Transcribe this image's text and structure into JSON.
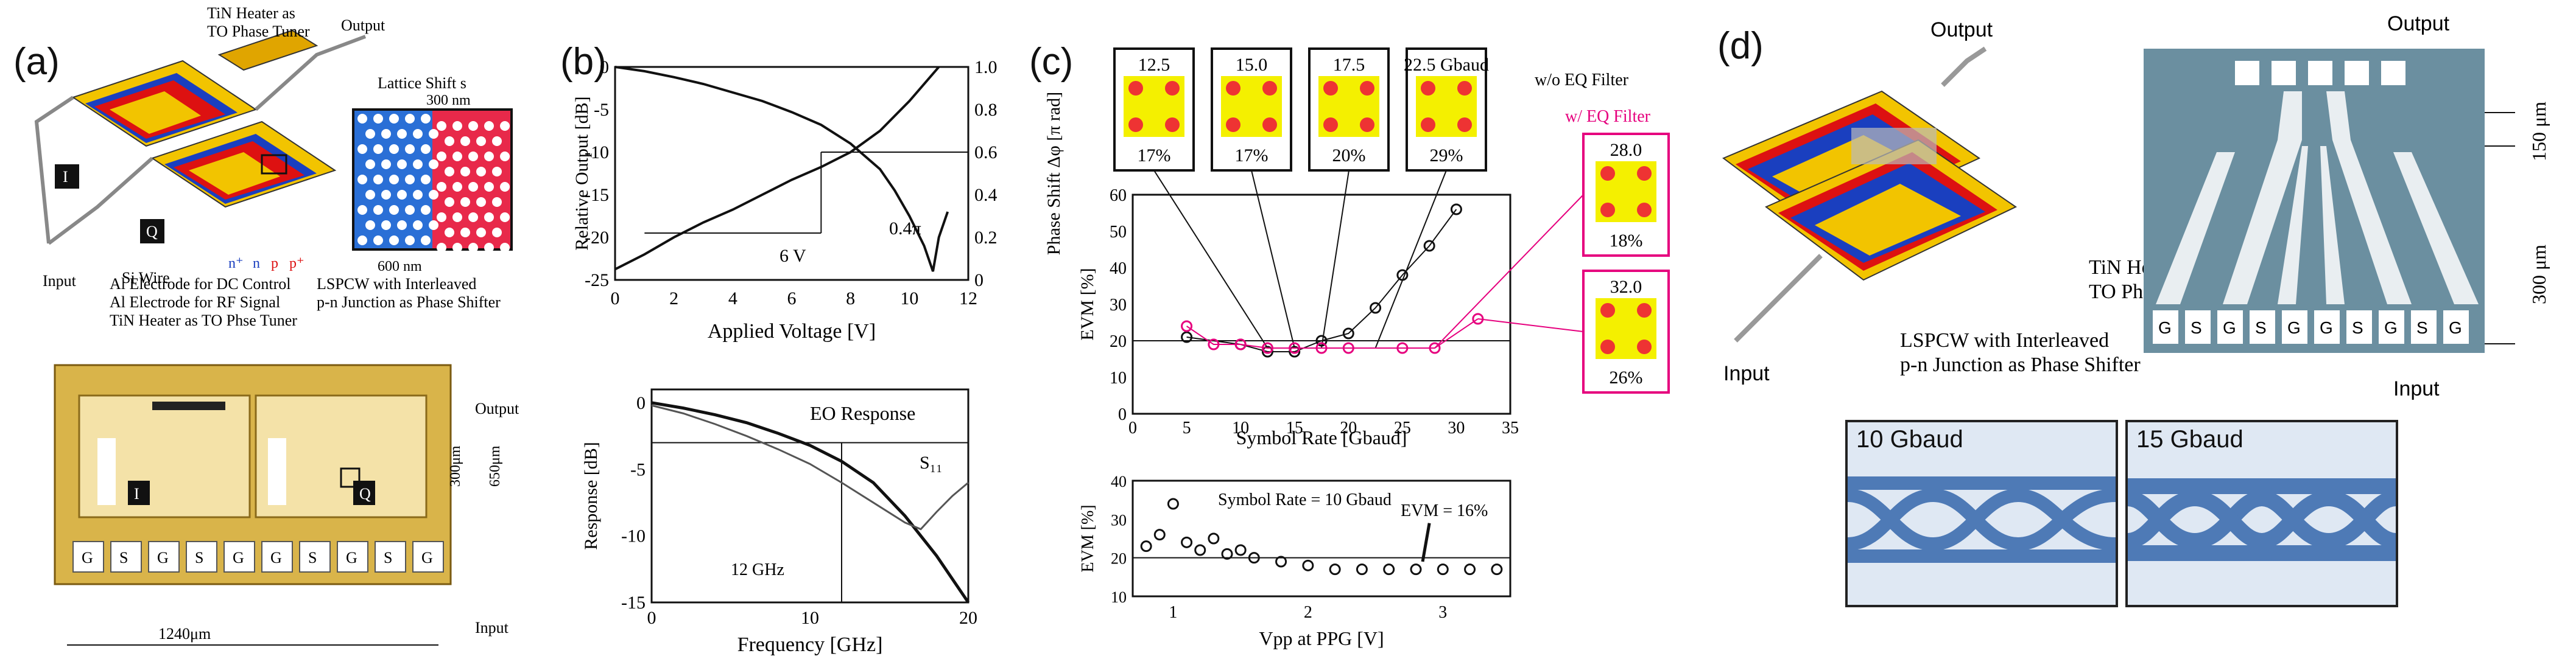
{
  "panels": {
    "a": {
      "label": "(a)",
      "heater_label_1": "TiN Heater as",
      "heater_label_2": "TO Phase Tuner",
      "output": "Output",
      "input": "Input",
      "si_wire": "Si Wire",
      "lattice_shift": "Lattice Shift s",
      "dim_300nm": "300 nm",
      "dim_600nm": "600 nm",
      "doping": [
        "n⁺",
        "n",
        "p",
        "p⁺"
      ],
      "lspcw_1": "LSPCW with Interleaved",
      "lspcw_2": "p-n Junction as Phase Shifter",
      "al_dc": "Al Electrode for DC Control",
      "al_rf": "Al Electrode for RF Signal",
      "tin_heater": "TiN Heater as TO Phse Tuner",
      "arm_I": "I",
      "arm_Q": "Q",
      "dim_300um": "300μm",
      "dim_650um": "650μm",
      "dim_1240um": "1240μm",
      "pads": [
        "G",
        "S",
        "G",
        "S",
        "G",
        "G",
        "S",
        "G",
        "S",
        "G"
      ]
    },
    "b": {
      "label": "(b)",
      "top": {
        "ylabel_left": "Relative Output [dB]",
        "ylabel_right": "Phase Shift Δφ [π rad]",
        "xlabel": "Applied Voltage [V]",
        "yticks_left": [
          "0",
          "-5",
          "-10",
          "-15",
          "-20",
          "-25"
        ],
        "yticks_right": [
          "1.0",
          "0.8",
          "0.6",
          "0.4",
          "0.2",
          "0"
        ],
        "xticks": [
          "0",
          "2",
          "4",
          "6",
          "8",
          "10",
          "12"
        ],
        "annot_04pi": "0.4π",
        "annot_6v": "6 V"
      },
      "bottom": {
        "ylabel": "Response [dB]",
        "xlabel": "Frequency [GHz]",
        "yticks": [
          "0",
          "-5",
          "-10",
          "-15"
        ],
        "xticks": [
          "0",
          "10",
          "20"
        ],
        "legend": "EO Response",
        "s11": "S₁₁",
        "annot_12ghz": "12 GHz"
      }
    },
    "c": {
      "label": "(c)",
      "const_rates": [
        "12.5",
        "15.0",
        "17.5",
        "22.5 Gbaud"
      ],
      "const_evm": [
        "17%",
        "17%",
        "20%",
        "29%"
      ],
      "wo_eq": "w/o EQ Filter",
      "w_eq": "w/ EQ Filter",
      "eq_rates": [
        "28.0",
        "32.0"
      ],
      "eq_evm": [
        "18%",
        "26%"
      ],
      "top": {
        "ylabel": "EVM [%]",
        "xlabel": "Symbol Rate [Gbaud]",
        "yticks": [
          "60",
          "50",
          "40",
          "30",
          "20",
          "10",
          "0"
        ],
        "xticks": [
          "0",
          "5",
          "10",
          "15",
          "20",
          "25",
          "30",
          "35"
        ]
      },
      "bottom": {
        "ylabel": "EVM [%]",
        "xlabel": "Vpp at PPG [V]",
        "yticks": [
          "40",
          "30",
          "20",
          "10"
        ],
        "xticks": [
          "1",
          "2",
          "3"
        ],
        "annot_rate": "Symbol Rate = 10 Gbaud",
        "annot_evm": "EVM = 16%"
      }
    },
    "d": {
      "label": "(d)",
      "output": "Output",
      "input": "Input",
      "heater_1": "TiN Heater as",
      "heater_2": "TO Phase Tuner",
      "lspcw_1": "LSPCW with Interleaved",
      "lspcw_2": "p-n Junction as Phase Shifter",
      "dim_150um": "150 μm",
      "dim_300um": "300 μm",
      "pads": [
        "G",
        "S",
        "G",
        "S",
        "G",
        "G",
        "S",
        "G",
        "S",
        "G"
      ],
      "eye_1": "10 Gbaud",
      "eye_2": "15 Gbaud"
    }
  },
  "chart_data": [
    {
      "type": "line",
      "xlabel": "Applied Voltage [V]",
      "ylabel": "Relative Output [dB]",
      "xlim": [
        0,
        12
      ],
      "ylim": [
        -25,
        0
      ],
      "y2lim": [
        0,
        1.0
      ],
      "series": [
        {
          "x": [
            0,
            1,
            2,
            3,
            4,
            5,
            6,
            7,
            8,
            9,
            9.5,
            10,
            10.5,
            10.8,
            11,
            11.3
          ],
          "values": [
            0,
            -0.5,
            -1.2,
            -2,
            -3,
            -4,
            -5.3,
            -6.8,
            -9,
            -12,
            -14.5,
            -17.5,
            -21,
            -24,
            -20,
            -17
          ]
        },
        {
          "x": [
            0,
            1,
            2,
            3,
            4,
            5,
            6,
            7,
            8,
            9,
            10,
            11
          ],
          "values": [
            0.05,
            0.12,
            0.2,
            0.27,
            0.33,
            0.4,
            0.47,
            0.53,
            0.6,
            0.7,
            0.84,
            1.0
          ]
        }
      ]
    },
    {
      "type": "line",
      "xlabel": "Frequency [GHz]",
      "ylabel": "Response [dB]",
      "xlim": [
        0,
        20
      ],
      "ylim": [
        -15,
        1
      ],
      "series": [
        {
          "name": "EO Response",
          "x": [
            0,
            2,
            4,
            6,
            8,
            10,
            12,
            14,
            16,
            18,
            20
          ],
          "values": [
            0,
            -0.4,
            -0.9,
            -1.5,
            -2.3,
            -3.2,
            -4.4,
            -6,
            -8.5,
            -11.5,
            -15
          ]
        },
        {
          "name": "S₁₁",
          "x": [
            0,
            2,
            4,
            6,
            8,
            10,
            12,
            14,
            16,
            17,
            18,
            19,
            20
          ],
          "values": [
            -0.2,
            -0.8,
            -1.6,
            -2.5,
            -3.5,
            -4.6,
            -6,
            -7.5,
            -9,
            -9.5,
            -8.2,
            -7,
            -6
          ]
        }
      ]
    },
    {
      "type": "scatter",
      "xlabel": "Symbol Rate [Gbaud]",
      "ylabel": "EVM [%]",
      "xlim": [
        0,
        35
      ],
      "ylim": [
        0,
        60
      ],
      "series": [
        {
          "name": "w/o EQ Filter",
          "x": [
            5,
            10,
            12.5,
            15,
            17.5,
            20,
            22.5,
            25,
            27.5,
            30
          ],
          "values": [
            21,
            19,
            17,
            17,
            20,
            22,
            29,
            38,
            46,
            56
          ]
        },
        {
          "name": "w/ EQ Filter",
          "x": [
            5,
            7.5,
            10,
            12.5,
            15,
            17.5,
            20,
            25,
            28,
            32
          ],
          "values": [
            24,
            19,
            19,
            18,
            18,
            18,
            18,
            18,
            18,
            26
          ]
        }
      ]
    },
    {
      "type": "scatter",
      "xlabel": "Vpp at PPG [V]",
      "ylabel": "EVM [%]",
      "xlim": [
        0.7,
        3.5
      ],
      "ylim": [
        10,
        40
      ],
      "series": [
        {
          "x": [
            0.8,
            0.9,
            1.0,
            1.1,
            1.2,
            1.3,
            1.4,
            1.5,
            1.6,
            1.8,
            2.0,
            2.2,
            2.4,
            2.6,
            2.8,
            3.0,
            3.2,
            3.4
          ],
          "values": [
            23,
            26,
            34,
            24,
            22,
            25,
            21,
            22,
            20,
            19,
            18,
            17,
            17,
            17,
            17,
            17,
            17,
            17
          ]
        }
      ]
    }
  ]
}
